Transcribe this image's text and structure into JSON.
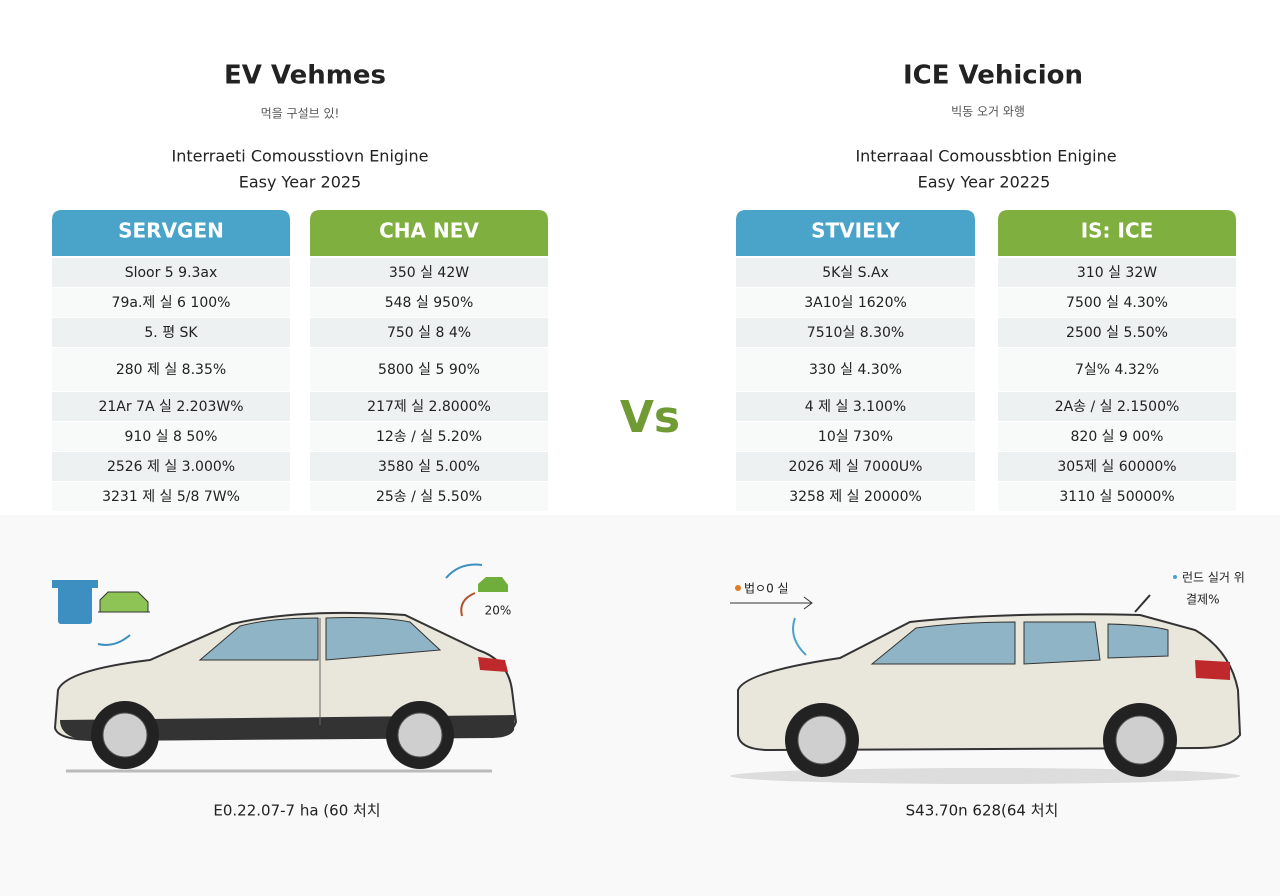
{
  "left": {
    "title": "EV Vehmes",
    "subtitle": "먹을 구설브 있!",
    "heading": "Interraeti Comousstiovn Enigine",
    "year": "Easy Year 2025",
    "tables": [
      {
        "header": "SERVGEN",
        "rows": [
          "Sloor 5  9.3ax",
          "79a.제 실  6 100%",
          "5. 평  SK",
          "280 제 실  8.35%",
          "21Ar 7A 실  2.203W%",
          "910 실  8 50%",
          "2526 제 실  3.000%",
          "3231 제 실  5/8 7W%"
        ]
      },
      {
        "header": "CHA NEV",
        "rows": [
          "350 실  42W",
          "548 실  950%",
          "750 실  8 4%",
          "5800 실  5 90%",
          "217제 실  2.8000%",
          "12송 / 실  5.20%",
          "3580 실  5.00%",
          "25송 / 실  5.50%"
        ]
      }
    ],
    "car": {
      "annotation": "20%",
      "caption": "E0.22.07-7 ha (60 처치"
    }
  },
  "versus": "Vs",
  "right": {
    "title": "ICE Vehicion",
    "subtitle": "빅동 오거 와행",
    "heading": "Interraaal Comoussbtion Enigine",
    "year": "Easy Year 20225",
    "tables": [
      {
        "header": "STVIELY",
        "rows": [
          "5K실  S.Ax",
          "3A10실  1620%",
          "7510실  8.30%",
          "330 실  4.30%",
          "4 제 실  3.100%",
          "10실  730%",
          "2026 제 실  7000U%",
          "3258 제 실  20000%"
        ]
      },
      {
        "header": "IS: ICE",
        "rows": [
          "310 실  32W",
          "7500 실  4.30%",
          "2500 실  5.50%",
          "7실%  4.32%",
          "2A송 / 실  2.1500%",
          "820 실  9 00%",
          "305제 실  60000%",
          "3110 실  50000%"
        ]
      }
    ],
    "car": {
      "annotation_left": "법ㅇ0 실",
      "annotation_right": [
        "런드 실거 위",
        "결제%"
      ],
      "caption": "S43.70n 628(64 처치"
    }
  }
}
